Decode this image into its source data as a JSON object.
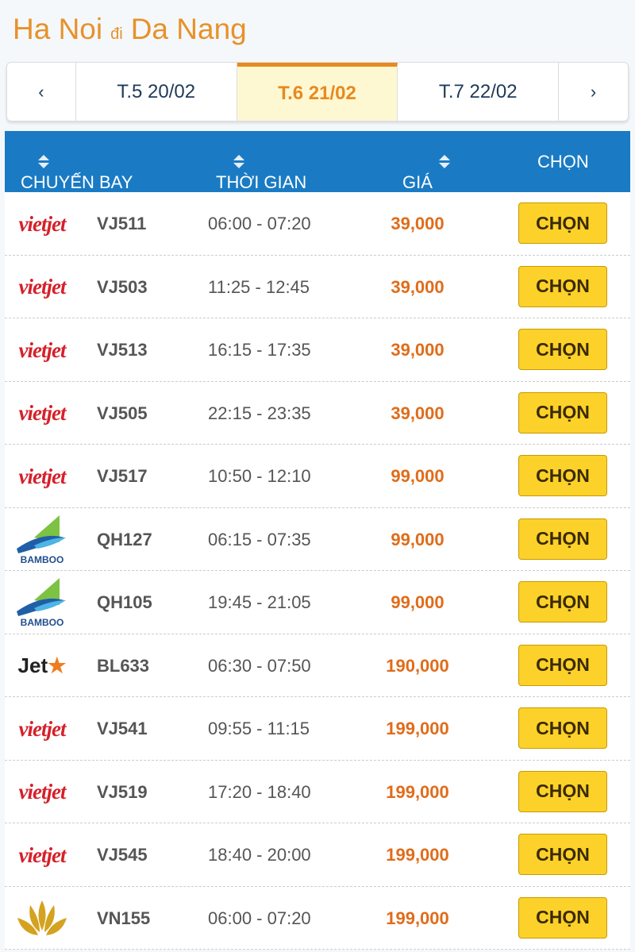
{
  "route": {
    "from": "Ha Noi",
    "connector": "đi",
    "to": "Da Nang"
  },
  "dates": {
    "prev": "‹",
    "next": "›",
    "items": [
      {
        "label": "T.5 20/02",
        "active": false
      },
      {
        "label": "T.6 21/02",
        "active": true
      },
      {
        "label": "T.7 22/02",
        "active": false
      }
    ]
  },
  "table": {
    "headers": [
      "CHUYẾN BAY",
      "THỜI GIAN",
      "GIÁ",
      "CHỌN"
    ],
    "rows": [
      {
        "airline": "vietjet",
        "logo": "vietjet",
        "code": "VJ511",
        "time": "06:00 - 07:20",
        "price": "39,000",
        "action": "CHỌN"
      },
      {
        "airline": "vietjet",
        "logo": "vietjet",
        "code": "VJ503",
        "time": "11:25 - 12:45",
        "price": "39,000",
        "action": "CHỌN"
      },
      {
        "airline": "vietjet",
        "logo": "vietjet",
        "code": "VJ513",
        "time": "16:15 - 17:35",
        "price": "39,000",
        "action": "CHỌN"
      },
      {
        "airline": "vietjet",
        "logo": "vietjet",
        "code": "VJ505",
        "time": "22:15 - 23:35",
        "price": "39,000",
        "action": "CHỌN"
      },
      {
        "airline": "vietjet",
        "logo": "vietjet",
        "code": "VJ517",
        "time": "10:50 - 12:10",
        "price": "99,000",
        "action": "CHỌN"
      },
      {
        "airline": "bamboo",
        "logo": "BAMBOO",
        "code": "QH127",
        "time": "06:15 - 07:35",
        "price": "99,000",
        "action": "CHỌN"
      },
      {
        "airline": "bamboo",
        "logo": "BAMBOO",
        "code": "QH105",
        "time": "19:45 - 21:05",
        "price": "99,000",
        "action": "CHỌN"
      },
      {
        "airline": "jetstar",
        "logo": "Jet",
        "code": "BL633",
        "time": "06:30 - 07:50",
        "price": "190,000",
        "action": "CHỌN"
      },
      {
        "airline": "vietjet",
        "logo": "vietjet",
        "code": "VJ541",
        "time": "09:55 - 11:15",
        "price": "199,000",
        "action": "CHỌN"
      },
      {
        "airline": "vietjet",
        "logo": "vietjet",
        "code": "VJ519",
        "time": "17:20 - 18:40",
        "price": "199,000",
        "action": "CHỌN"
      },
      {
        "airline": "vietjet",
        "logo": "vietjet",
        "code": "VJ545",
        "time": "18:40 - 20:00",
        "price": "199,000",
        "action": "CHỌN"
      },
      {
        "airline": "vietnam-airlines",
        "logo": "",
        "code": "VN155",
        "time": "06:00 - 07:20",
        "price": "199,000",
        "action": "CHỌN"
      }
    ]
  },
  "colors": {
    "accent": "#e8912a",
    "header": "#1a7bc4",
    "button": "#fcd12a",
    "price": "#e06c1a"
  }
}
